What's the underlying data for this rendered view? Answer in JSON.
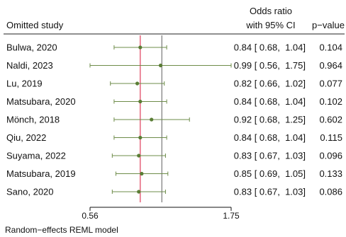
{
  "chart_data": {
    "type": "forest",
    "header": {
      "study_col": "Omitted study",
      "effect_col_line1": "Odds ratio",
      "effect_col_line2": "with 95% CI",
      "p_col": "p−value"
    },
    "x_axis": {
      "min": 0.56,
      "max": 1.75,
      "ticks": [
        {
          "value": 0.56,
          "label": "0.56"
        },
        {
          "value": 1.75,
          "label": "1.75"
        }
      ]
    },
    "reference_lines": [
      {
        "value": 0.84,
        "color": "#e03c5a"
      },
      {
        "value": 1.0,
        "color": "#777777"
      }
    ],
    "point_color": "#5a7d35",
    "ci_color": "#6e8c4a",
    "rows": [
      {
        "study": "Bulwa, 2020",
        "or": 0.84,
        "lo": 0.68,
        "hi": 1.04,
        "ci_text": "0.84 [ 0.68,  1.04]",
        "p": "0.104"
      },
      {
        "study": "Naldi, 2023",
        "or": 0.99,
        "lo": 0.56,
        "hi": 1.75,
        "ci_text": "0.99 [ 0.56,  1.75]",
        "p": "0.964"
      },
      {
        "study": "Lu, 2019",
        "or": 0.82,
        "lo": 0.66,
        "hi": 1.02,
        "ci_text": "0.82 [ 0.66,  1.02]",
        "p": "0.077"
      },
      {
        "study": "Matsubara, 2020",
        "or": 0.84,
        "lo": 0.68,
        "hi": 1.04,
        "ci_text": "0.84 [ 0.68,  1.04]",
        "p": "0.102"
      },
      {
        "study": "Mönch, 2018",
        "or": 0.92,
        "lo": 0.68,
        "hi": 1.25,
        "ci_text": "0.92 [ 0.68,  1.25]",
        "p": "0.602"
      },
      {
        "study": "Qiu, 2022",
        "or": 0.84,
        "lo": 0.68,
        "hi": 1.04,
        "ci_text": "0.84 [ 0.68,  1.04]",
        "p": "0.115"
      },
      {
        "study": "Suyama, 2022",
        "or": 0.83,
        "lo": 0.67,
        "hi": 1.03,
        "ci_text": "0.83 [ 0.67,  1.03]",
        "p": "0.096"
      },
      {
        "study": "Matsubara, 2019",
        "or": 0.85,
        "lo": 0.69,
        "hi": 1.05,
        "ci_text": "0.85 [ 0.69,  1.05]",
        "p": "0.133"
      },
      {
        "study": "Sano, 2020",
        "or": 0.83,
        "lo": 0.67,
        "hi": 1.03,
        "ci_text": "0.83 [ 0.67,  1.03]",
        "p": "0.086"
      }
    ],
    "footer": "Random−effects REML model"
  }
}
